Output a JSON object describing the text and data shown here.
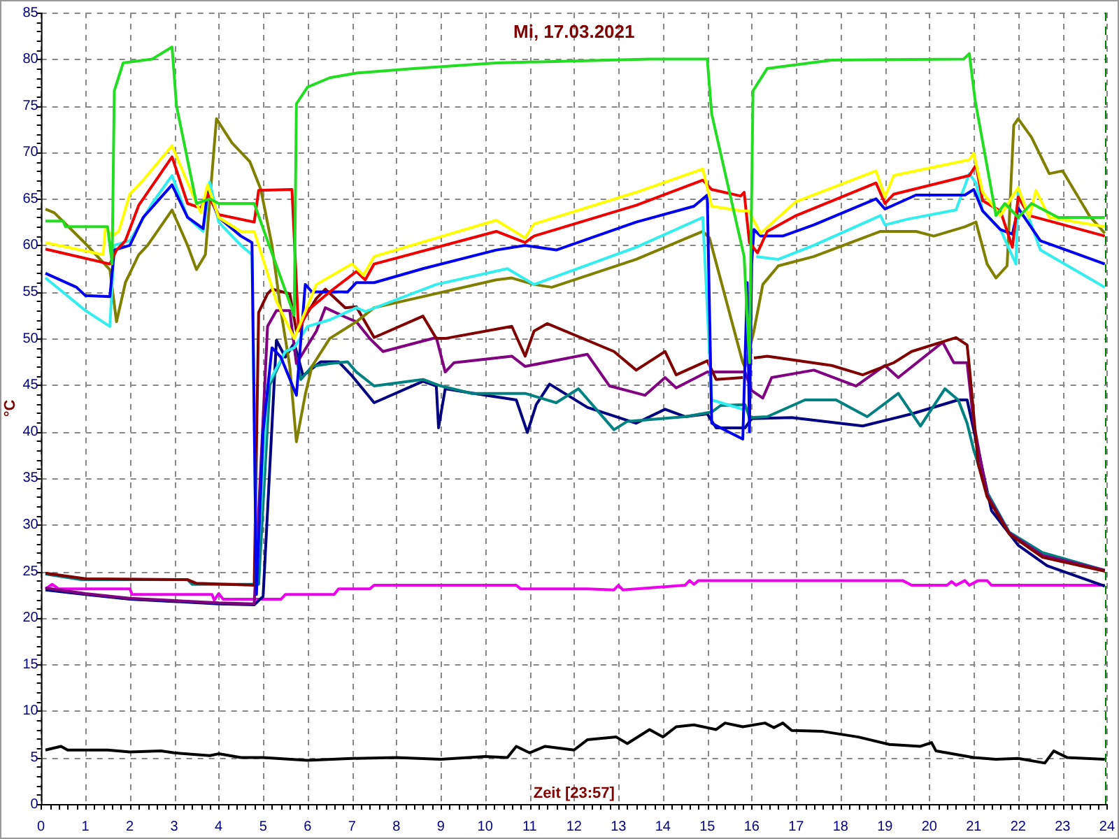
{
  "chart_data": {
    "type": "line",
    "title": "Mi, 17.03.2021",
    "xlabel": "Zeit [23:57]",
    "ylabel": "°C",
    "xlim": [
      0,
      24
    ],
    "xticks": [
      0,
      1,
      2,
      3,
      4,
      5,
      6,
      7,
      8,
      9,
      10,
      11,
      12,
      13,
      14,
      15,
      16,
      17,
      18,
      19,
      20,
      21,
      22,
      23,
      24
    ],
    "ylim": [
      0,
      85
    ],
    "yticks": [
      0,
      5,
      10,
      15,
      20,
      25,
      30,
      35,
      40,
      45,
      50,
      55,
      60,
      65,
      70,
      75,
      80,
      85
    ],
    "grid": true,
    "legend": false,
    "marker": "none",
    "line_style": "solid",
    "ref_lines": [
      {
        "axis": "x",
        "value": 23.95,
        "color": "#008000",
        "line_style": "dashed"
      }
    ],
    "series": [
      {
        "color": "#22dd22",
        "x": [
          0.1,
          0.5,
          0.55,
          1.5,
          1.6,
          1.65,
          1.85,
          2.5,
          2.95,
          3.05,
          3.5,
          3.8,
          4.0,
          4.8,
          5.7,
          5.75,
          6.0,
          6.5,
          7.1,
          8.4,
          10.25,
          13.7,
          15.0,
          15.1,
          15.83,
          15.95,
          16.03,
          16.35,
          17.8,
          20.77,
          20.9,
          21.03,
          21.5,
          21.7,
          22.0,
          22.3,
          22.9,
          23.95
        ],
        "values": [
          62.6,
          62.6,
          62,
          62,
          58,
          76.6,
          79.6,
          80,
          81.3,
          75,
          64.5,
          65,
          64.5,
          64.5,
          52.5,
          75.2,
          77,
          78,
          78.5,
          79,
          79.6,
          80,
          80,
          74.1,
          58.8,
          47.4,
          76.6,
          79,
          79.9,
          80,
          80.6,
          75.6,
          63.2,
          64.5,
          63,
          64.5,
          63,
          63
        ]
      },
      {
        "color": "#ffff00",
        "x": [
          0.1,
          1.4,
          1.45,
          1.6,
          1.75,
          2.0,
          2.3,
          2.95,
          3.5,
          3.6,
          3.75,
          4.0,
          4.5,
          4.8,
          5.3,
          5.7,
          6.2,
          7.0,
          7.26,
          7.5,
          10.25,
          10.9,
          11.1,
          13.4,
          14.9,
          15.1,
          15.8,
          15.93,
          16.2,
          17.0,
          18.8,
          19.0,
          19.2,
          20.9,
          21.0,
          21.2,
          21.6,
          22.0,
          22.25,
          22.4,
          22.7,
          23.95
        ],
        "values": [
          60.3,
          59,
          61.9,
          61,
          61.5,
          65.5,
          67,
          70.7,
          64.5,
          63.5,
          66.5,
          63,
          61.5,
          61.5,
          54,
          50,
          55.8,
          58,
          56.8,
          58.8,
          62.7,
          60.8,
          62.3,
          65.7,
          68.2,
          64.2,
          63.7,
          63.7,
          61.3,
          64.7,
          68,
          65.2,
          67.5,
          69.2,
          69.9,
          65.7,
          63.2,
          66.2,
          63,
          65.9,
          63,
          62
        ]
      },
      {
        "color": "#ee0000",
        "x": [
          0.1,
          1.55,
          1.7,
          1.9,
          2.2,
          2.95,
          3.3,
          3.6,
          3.75,
          4.0,
          4.8,
          4.9,
          5.65,
          5.8,
          6.0,
          6.5,
          7.1,
          7.3,
          7.5,
          10.25,
          10.9,
          11.1,
          13.4,
          14.9,
          15.1,
          15.75,
          15.83,
          15.95,
          16.13,
          16.35,
          17.0,
          18.8,
          19.0,
          19.2,
          20.9,
          21.05,
          21.2,
          21.6,
          21.87,
          22.0,
          22.25,
          23.95
        ],
        "values": [
          59.6,
          58,
          59.5,
          60.5,
          64.3,
          69.5,
          64.5,
          64,
          65.5,
          63.3,
          62.5,
          65.9,
          66,
          50.8,
          53,
          55,
          57.2,
          56.3,
          58,
          61.5,
          60.3,
          61,
          64.3,
          67,
          66,
          65.3,
          65.7,
          60.3,
          59.2,
          61.5,
          63.2,
          66.7,
          64.5,
          65.5,
          67.5,
          68.6,
          64.8,
          63.7,
          59.8,
          65.2,
          63.2,
          61
        ]
      },
      {
        "color": "#0000ee",
        "x": [
          0.1,
          0.8,
          1.0,
          1.55,
          1.65,
          2.0,
          2.3,
          2.95,
          3.3,
          3.65,
          3.75,
          4.0,
          4.5,
          4.75,
          4.85,
          5.0,
          5.2,
          5.4,
          5.75,
          5.95,
          6.1,
          6.9,
          7.1,
          7.5,
          8.6,
          10.25,
          10.9,
          11.6,
          13.4,
          14.7,
          15.0,
          15.1,
          15.3,
          15.8,
          15.9,
          15.95,
          16.0,
          16.05,
          16.2,
          16.7,
          17.4,
          18.8,
          19.0,
          19.7,
          20.8,
          21.0,
          21.2,
          21.6,
          21.87,
          22.0,
          22.5,
          23.95
        ],
        "values": [
          57,
          55.5,
          54.6,
          54.5,
          59.5,
          60,
          63,
          66.5,
          63,
          61.8,
          65.8,
          63,
          61,
          60.3,
          22.5,
          40,
          49,
          48,
          43.9,
          55.8,
          55,
          55,
          56,
          56,
          57.5,
          59.5,
          60,
          59.5,
          62.5,
          64.2,
          65.4,
          40.9,
          40.4,
          39.2,
          56,
          40,
          58,
          61.7,
          61,
          61,
          62.2,
          65,
          63.9,
          65.4,
          65.4,
          66,
          63.7,
          61.7,
          61.2,
          64,
          60.5,
          58
        ]
      },
      {
        "color": "#33eeee",
        "x": [
          0.1,
          1.0,
          1.55,
          1.65,
          2.0,
          2.5,
          2.95,
          3.3,
          3.65,
          3.8,
          4.0,
          4.5,
          4.75,
          4.85,
          5.1,
          5.5,
          5.7,
          6.0,
          6.5,
          7.1,
          7.3,
          8.9,
          10.5,
          11.1,
          13.4,
          14.9,
          15.1,
          15.8,
          15.95,
          16.1,
          16.6,
          17.4,
          18.9,
          19.0,
          19.5,
          20.6,
          20.9,
          21.05,
          21.2,
          21.6,
          21.95,
          22.0,
          22.5,
          23.95
        ],
        "values": [
          56.5,
          53,
          51.3,
          60,
          60.5,
          64.5,
          67.5,
          63,
          61.5,
          66.8,
          62.5,
          60,
          59,
          23.5,
          45,
          48.6,
          49,
          51.3,
          52,
          53.3,
          52.9,
          55.8,
          57.5,
          55.8,
          59.8,
          63,
          43.4,
          42.4,
          null,
          58.8,
          58.5,
          60,
          63.2,
          62.2,
          62.8,
          63.8,
          67.7,
          66.7,
          63.7,
          61.7,
          58,
          66.2,
          59.5,
          55.5
        ]
      },
      {
        "color": "#808000",
        "x": [
          0.1,
          0.3,
          1.0,
          1.55,
          1.7,
          1.9,
          2.2,
          2.4,
          2.95,
          3.3,
          3.5,
          3.7,
          3.95,
          4.3,
          4.7,
          4.95,
          5.2,
          5.4,
          5.6,
          5.75,
          5.95,
          6.1,
          6.5,
          7.1,
          7.5,
          10.25,
          10.6,
          11.1,
          11.5,
          13.4,
          14.9,
          15.05,
          15.8,
          15.85,
          16.05,
          16.25,
          16.6,
          17.4,
          18.9,
          19.7,
          20.1,
          20.8,
          21.05,
          21.3,
          21.5,
          21.75,
          21.9,
          22.0,
          22.3,
          22.7,
          23.0,
          23.6,
          23.95
        ],
        "values": [
          63.9,
          63.5,
          60.2,
          57.4,
          51.8,
          56,
          59,
          60,
          63.8,
          60,
          57.4,
          59,
          73.6,
          71,
          69,
          66,
          60,
          53,
          47,
          38.9,
          44,
          47,
          50,
          51.8,
          53.3,
          56.3,
          56.5,
          55.8,
          55.5,
          58.5,
          61.5,
          60.8,
          47.4,
          46.9,
          50.8,
          55.8,
          57.8,
          58.8,
          61.5,
          61.5,
          61,
          62,
          62.5,
          58,
          56.5,
          57.8,
          72.9,
          73.6,
          71.6,
          67.7,
          68,
          63.2,
          61.3
        ]
      },
      {
        "color": "#800000",
        "x": [
          0.1,
          1.0,
          3.3,
          3.5,
          4.8,
          4.9,
          5.1,
          5.2,
          5.6,
          5.75,
          6.2,
          6.4,
          6.85,
          7.1,
          7.5,
          8.6,
          8.9,
          9.1,
          10.6,
          10.9,
          11.1,
          11.4,
          12.9,
          13.4,
          14.05,
          14.3,
          15.0,
          15.2,
          15.8,
          15.85,
          16.05,
          16.35,
          17.8,
          18.5,
          19.2,
          19.6,
          20.6,
          20.85,
          20.9,
          21.1,
          21.3,
          21.8,
          22.55,
          23.95
        ],
        "values": [
          24.8,
          24.2,
          24.1,
          23.7,
          23.5,
          52.8,
          54.8,
          55.3,
          54.8,
          50.8,
          54.3,
          55.3,
          53.3,
          53.4,
          50.1,
          52.4,
          50,
          50,
          51.3,
          48.1,
          50.8,
          51.6,
          48.6,
          46.6,
          48.6,
          46.1,
          47.6,
          45.6,
          45.8,
          null,
          47.9,
          48.1,
          47.1,
          46.1,
          47.4,
          48.6,
          50.1,
          49.3,
          47,
          36.5,
          33,
          29,
          26.5,
          25
        ]
      },
      {
        "color": "#800080",
        "x": [
          0.1,
          1.0,
          2.0,
          4.0,
          4.8,
          5.1,
          5.3,
          5.6,
          5.75,
          6.2,
          6.4,
          6.85,
          7.1,
          7.4,
          7.7,
          8.9,
          9.1,
          9.3,
          10.6,
          10.9,
          12.3,
          12.8,
          13.6,
          14.05,
          14.3,
          15.0,
          15.85,
          16.0,
          16.25,
          16.45,
          17.4,
          18.35,
          19.0,
          19.3,
          20.3,
          20.55,
          20.85,
          21.0,
          21.3,
          21.8,
          22.55,
          23.95
        ],
        "values": [
          23.2,
          22.6,
          22.1,
          21.6,
          21.5,
          51.3,
          53,
          53,
          47.3,
          50.8,
          53.3,
          52.3,
          51.8,
          50,
          48.6,
          50.1,
          46.4,
          47.4,
          48.1,
          47,
          48.3,
          44.9,
          43.9,
          45.8,
          44.7,
          46.4,
          46.4,
          44.4,
          43.6,
          45.8,
          46.6,
          44.9,
          47.1,
          45.8,
          49.6,
          47.4,
          47.4,
          40.9,
          33.2,
          29.1,
          26.7,
          25.1
        ]
      },
      {
        "color": "#008080",
        "x": [
          0.1,
          0.9,
          3.3,
          3.4,
          4.9,
          5.15,
          5.5,
          5.7,
          5.85,
          6.1,
          6.5,
          6.9,
          7.1,
          7.5,
          8.6,
          9.0,
          9.7,
          10.9,
          11.6,
          12.1,
          12.9,
          13.2,
          14.5,
          15.1,
          15.3,
          15.85,
          15.95,
          16.35,
          17.2,
          17.9,
          18.6,
          19.3,
          19.8,
          20.35,
          20.65,
          20.85,
          21.0,
          21.3,
          21.8,
          22.55,
          23.95
        ],
        "values": [
          24.7,
          24.1,
          24.1,
          23.6,
          23.6,
          45,
          48.6,
          49,
          45.6,
          47,
          47.3,
          47.5,
          46.4,
          44.9,
          45.6,
          44.9,
          44.1,
          44.1,
          43.1,
          44.6,
          40.2,
          41.1,
          41.6,
          42.1,
          42.8,
          42.9,
          41.5,
          41.6,
          43.4,
          43.4,
          41.6,
          44.1,
          40.6,
          44.6,
          43.4,
          40.9,
          38,
          33.5,
          29.2,
          27,
          25.1
        ]
      },
      {
        "color": "#000080",
        "x": [
          0.1,
          1.0,
          2.0,
          4.0,
          4.8,
          5.0,
          5.3,
          5.5,
          5.7,
          5.9,
          6.3,
          6.7,
          7.0,
          7.5,
          8.6,
          8.9,
          8.95,
          9.1,
          9.75,
          10.7,
          10.95,
          11.15,
          11.45,
          12.3,
          13.4,
          14.05,
          14.5,
          15.0,
          15.2,
          15.85,
          16.0,
          16.9,
          18.5,
          19.6,
          20.65,
          20.85,
          21.4,
          22.0,
          22.65,
          23.95
        ],
        "values": [
          23,
          22.5,
          22,
          21.5,
          21.4,
          22.3,
          49.8,
          48,
          49.5,
          46,
          47.5,
          47.5,
          46,
          43.1,
          45.4,
          44.9,
          40.4,
          44.6,
          44.1,
          43.4,
          39.9,
          42.9,
          45.1,
          42.6,
          40.9,
          42.4,
          41.6,
          41.9,
          40.4,
          40.4,
          41.4,
          41.5,
          40.6,
          41.9,
          43.4,
          43.4,
          31.5,
          27.8,
          25.6,
          23.4
        ]
      },
      {
        "color": "#ee00ee",
        "x": [
          0.1,
          0.25,
          0.4,
          2.0,
          2.05,
          3.85,
          3.9,
          4.0,
          4.1,
          5.4,
          5.5,
          6.6,
          6.7,
          7.4,
          7.5,
          10.7,
          10.8,
          12.3,
          12.9,
          13.0,
          13.1,
          14.5,
          14.6,
          14.7,
          14.8,
          19.4,
          19.6,
          20.4,
          20.5,
          20.6,
          20.8,
          20.9,
          21.1,
          21.3,
          21.4,
          23.95
        ],
        "values": [
          23.1,
          23.6,
          23.1,
          23.1,
          22.5,
          22.5,
          21.9,
          22.6,
          22,
          22,
          22.5,
          22.5,
          23.1,
          23.1,
          23.5,
          23.5,
          23.1,
          23.1,
          23,
          23.5,
          23,
          23.5,
          24,
          23.6,
          24,
          24,
          23.5,
          23.5,
          23.9,
          23.5,
          24,
          23.5,
          24,
          24,
          23.5,
          23.5
        ]
      },
      {
        "color": "#000000",
        "x": [
          0.1,
          0.45,
          0.6,
          1.5,
          2.0,
          2.7,
          3.0,
          3.8,
          4.0,
          4.5,
          5.0,
          6.0,
          7.0,
          8.0,
          9.0,
          10.0,
          10.5,
          10.7,
          11.0,
          11.35,
          12.0,
          12.3,
          12.95,
          13.2,
          13.7,
          14.0,
          14.3,
          14.7,
          15.2,
          15.4,
          15.8,
          16.3,
          16.5,
          16.7,
          16.9,
          17.6,
          18.4,
          19.1,
          19.8,
          20.05,
          20.15,
          21.0,
          21.5,
          22.0,
          22.6,
          22.8,
          23.1,
          23.95
        ],
        "values": [
          5.8,
          6.2,
          5.8,
          5.8,
          5.6,
          5.7,
          5.5,
          5.2,
          5.4,
          5,
          5,
          4.7,
          4.9,
          5,
          4.8,
          5.1,
          5,
          6.2,
          5.5,
          6.2,
          5.8,
          6.9,
          7.2,
          6.5,
          8,
          7.2,
          8.3,
          8.5,
          8,
          8.7,
          8.3,
          8.7,
          8.2,
          8.7,
          7.9,
          7.8,
          7.2,
          6.4,
          6.2,
          6.6,
          5.7,
          5,
          4.8,
          4.9,
          4.4,
          5.7,
          5,
          4.8
        ]
      }
    ]
  }
}
